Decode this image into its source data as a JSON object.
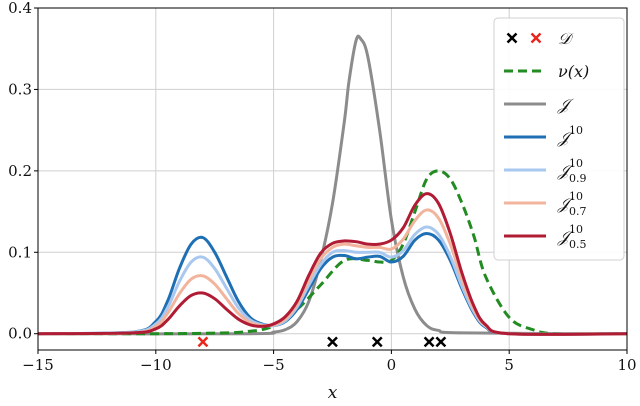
{
  "chart_data": {
    "type": "line",
    "xlabel": "x",
    "ylabel": "",
    "xlim": [
      -15,
      10
    ],
    "ylim": [
      -0.02,
      0.4
    ],
    "xticks": [
      -15,
      -10,
      -5,
      0,
      5,
      10
    ],
    "xtick_labels": [
      "−15",
      "−10",
      "−5",
      "0",
      "5",
      "10"
    ],
    "yticks": [
      0.0,
      0.1,
      0.2,
      0.3,
      0.4
    ],
    "ytick_labels": [
      "0.0",
      "0.1",
      "0.2",
      "0.3",
      "0.4"
    ],
    "grid": true,
    "legend_position": "top-right",
    "legend": [
      {
        "key": "D",
        "label": "𝒟",
        "marker": "x",
        "colors": [
          "#000000",
          "#e8281e"
        ]
      },
      {
        "key": "nu",
        "label": "ν(x)",
        "color": "#228b22",
        "dash": true
      },
      {
        "key": "J",
        "label": "𝒥",
        "color": "#8c8c8c"
      },
      {
        "key": "J10",
        "label": "𝒥",
        "sup": "10",
        "sub": "",
        "color": "#1f6fb4"
      },
      {
        "key": "J10_09",
        "label": "𝒥",
        "sup": "10",
        "sub": "0.9",
        "color": "#a9c8f0"
      },
      {
        "key": "J10_07",
        "label": "𝒥",
        "sup": "10",
        "sub": "0.7",
        "color": "#f2b49c"
      },
      {
        "key": "J10_05",
        "label": "𝒥",
        "sup": "10",
        "sub": "0.5",
        "color": "#b11c35"
      }
    ],
    "data_points": {
      "black": [
        -2.5,
        -0.6,
        1.6,
        2.1
      ],
      "red": [
        -8.0
      ],
      "y": -0.01
    },
    "series": [
      {
        "key": "J",
        "color": "#8c8c8c",
        "x": [
          -15,
          -6,
          -5,
          -4.5,
          -4,
          -3.5,
          -3,
          -2.5,
          -2,
          -1.8,
          -1.5,
          -1.3,
          -1,
          -0.5,
          0,
          0.5,
          1,
          1.5,
          2,
          3,
          10
        ],
        "y": [
          0,
          0,
          0.002,
          0.005,
          0.015,
          0.04,
          0.09,
          0.16,
          0.26,
          0.31,
          0.36,
          0.362,
          0.34,
          0.25,
          0.14,
          0.07,
          0.03,
          0.01,
          0.004,
          0.001,
          0
        ]
      },
      {
        "key": "nu",
        "color": "#228b22",
        "dash": true,
        "x": [
          -15,
          -10,
          -7,
          -6,
          -5.5,
          -5,
          -4,
          -3,
          -2,
          -1,
          -0.5,
          0,
          0.5,
          1,
          1.5,
          2,
          2.5,
          3,
          3.5,
          4,
          5,
          6,
          7,
          10
        ],
        "y": [
          0,
          0,
          0.001,
          0.003,
          0.005,
          0.01,
          0.03,
          0.06,
          0.09,
          0.09,
          0.088,
          0.09,
          0.11,
          0.15,
          0.19,
          0.2,
          0.19,
          0.16,
          0.12,
          0.07,
          0.02,
          0.005,
          0,
          0
        ]
      },
      {
        "key": "J10",
        "color": "#1f6fb4",
        "x": [
          -15,
          -11,
          -10,
          -9.5,
          -9,
          -8.5,
          -8,
          -7.5,
          -7,
          -6.5,
          -6,
          -5.5,
          -5,
          -4.5,
          -4,
          -3.5,
          -3,
          -2.5,
          -2,
          -1.5,
          -1,
          -0.5,
          0,
          0.5,
          1,
          1.5,
          2,
          2.5,
          3,
          3.5,
          4,
          5,
          10
        ],
        "y": [
          0,
          0.002,
          0.015,
          0.04,
          0.08,
          0.11,
          0.118,
          0.1,
          0.07,
          0.04,
          0.02,
          0.012,
          0.01,
          0.015,
          0.03,
          0.055,
          0.08,
          0.094,
          0.096,
          0.092,
          0.094,
          0.095,
          0.088,
          0.095,
          0.115,
          0.123,
          0.115,
          0.09,
          0.055,
          0.025,
          0.008,
          0,
          0
        ]
      },
      {
        "key": "J10_09",
        "color": "#a9c8f0",
        "x": [
          -15,
          -11,
          -10,
          -9.5,
          -9,
          -8.5,
          -8,
          -7.5,
          -7,
          -6.5,
          -6,
          -5.5,
          -5,
          -4.5,
          -4,
          -3.5,
          -3,
          -2.5,
          -2,
          -1.5,
          -1,
          -0.5,
          0,
          0.5,
          1,
          1.5,
          2,
          2.5,
          3,
          3.5,
          4,
          5,
          10
        ],
        "y": [
          0,
          0.002,
          0.012,
          0.032,
          0.064,
          0.088,
          0.094,
          0.08,
          0.056,
          0.032,
          0.017,
          0.011,
          0.01,
          0.016,
          0.033,
          0.06,
          0.085,
          0.1,
          0.102,
          0.1,
          0.1,
          0.1,
          0.094,
          0.102,
          0.122,
          0.131,
          0.122,
          0.095,
          0.058,
          0.027,
          0.009,
          0,
          0
        ]
      },
      {
        "key": "J10_07",
        "color": "#f2b49c",
        "x": [
          -15,
          -11,
          -10,
          -9.5,
          -9,
          -8.5,
          -8,
          -7.5,
          -7,
          -6.5,
          -6,
          -5.5,
          -5,
          -4.5,
          -4,
          -3.5,
          -3,
          -2.5,
          -2,
          -1.5,
          -1,
          -0.5,
          0,
          0.5,
          1,
          1.5,
          2,
          2.5,
          3,
          3.5,
          4,
          5,
          10
        ],
        "y": [
          0,
          0.001,
          0.009,
          0.025,
          0.049,
          0.067,
          0.071,
          0.061,
          0.043,
          0.025,
          0.014,
          0.01,
          0.011,
          0.018,
          0.036,
          0.066,
          0.092,
          0.106,
          0.11,
          0.108,
          0.106,
          0.106,
          0.104,
          0.116,
          0.139,
          0.152,
          0.142,
          0.11,
          0.066,
          0.03,
          0.01,
          0,
          0
        ]
      },
      {
        "key": "J10_05",
        "color": "#b11c35",
        "x": [
          -15,
          -11,
          -10,
          -9.5,
          -9,
          -8.5,
          -8,
          -7.5,
          -7,
          -6.5,
          -6,
          -5.5,
          -5,
          -4.5,
          -4,
          -3.5,
          -3,
          -2.5,
          -2,
          -1.5,
          -1,
          -0.5,
          0,
          0.5,
          1,
          1.5,
          2,
          2.5,
          3,
          3.5,
          4,
          5,
          10
        ],
        "y": [
          0,
          0.001,
          0.006,
          0.017,
          0.034,
          0.047,
          0.05,
          0.043,
          0.03,
          0.018,
          0.011,
          0.009,
          0.012,
          0.021,
          0.04,
          0.072,
          0.099,
          0.111,
          0.114,
          0.113,
          0.11,
          0.11,
          0.115,
          0.13,
          0.158,
          0.172,
          0.16,
          0.123,
          0.074,
          0.034,
          0.011,
          0,
          0
        ]
      }
    ]
  }
}
